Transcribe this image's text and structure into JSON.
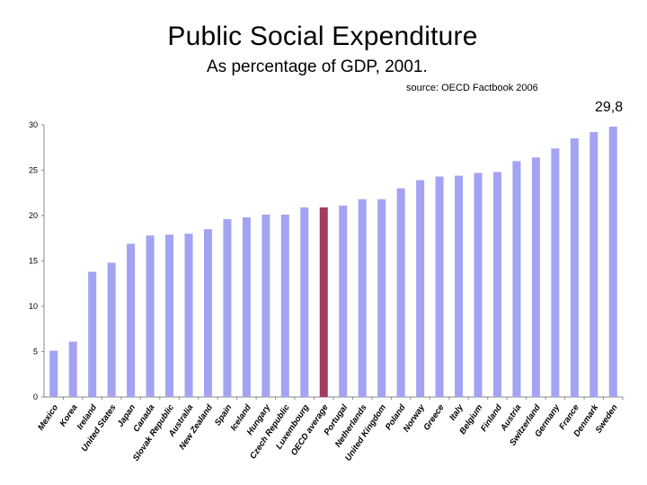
{
  "chart_data": {
    "type": "bar",
    "title": "Public Social Expenditure",
    "subtitle": "As percentage of GDP, 2001.",
    "source": "source: OECD Factbook 2006",
    "annotation": "29,8",
    "xlabel": "",
    "ylabel": "",
    "ylim": [
      0,
      30
    ],
    "yticks": [
      "0",
      "5",
      "10",
      "15",
      "20",
      "25",
      "30"
    ],
    "grid": false,
    "bar_color": "#a3a3f3",
    "highlight_color": "#a33a62",
    "highlight_category": "OECD average",
    "categories": [
      "Mexico",
      "Korea",
      "Ireland",
      "United States",
      "Japan",
      "Canada",
      "Slovak Republic",
      "Australia",
      "New Zealand",
      "Spain",
      "Iceland",
      "Hungary",
      "Czech Republic",
      "Luxembourg",
      "OECD average",
      "Portugal",
      "Netherlands",
      "United Kingdom",
      "Poland",
      "Norway",
      "Greece",
      "Italy",
      "Belgium",
      "Finland",
      "Austria",
      "Switzerland",
      "Germany",
      "France",
      "Denmark",
      "Sweden"
    ],
    "values": [
      5.1,
      6.1,
      13.8,
      14.8,
      16.9,
      17.8,
      17.9,
      18.0,
      18.5,
      19.6,
      19.8,
      20.1,
      20.1,
      20.9,
      20.9,
      21.1,
      21.8,
      21.8,
      23.0,
      23.9,
      24.3,
      24.4,
      24.7,
      24.8,
      26.0,
      26.4,
      27.4,
      28.5,
      29.2,
      29.8
    ]
  }
}
